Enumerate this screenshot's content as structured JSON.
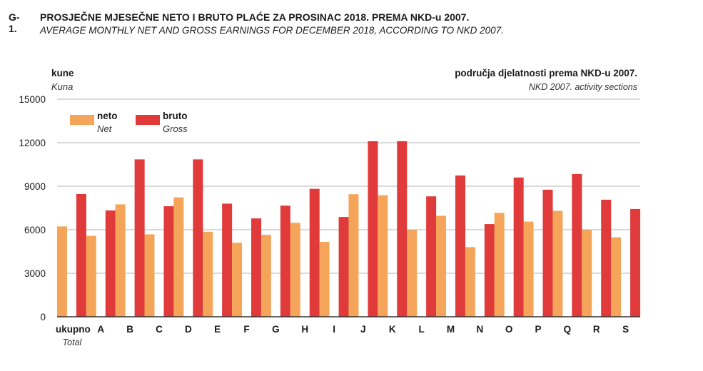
{
  "figure": {
    "code": "G-1.",
    "title": "PROSJEČNE MJESEČNE NETO I BRUTO PLAĆE ZA PROSINAC 2018. PREMA NKD-u 2007.",
    "subtitle": "AVERAGE MONTHLY NET AND GROSS EARNINGS FOR DECEMBER 2018, ACCORDING TO NKD 2007."
  },
  "colors": {
    "net": "#f5a55a",
    "gross": "#e03a3a",
    "grid": "#b5b5b5",
    "axis": "#333333"
  },
  "chart_data": {
    "type": "bar",
    "title": "PROSJEČNE MJESEČNE NETO I BRUTO PLAĆE ZA PROSINAC 2018. PREMA NKD-u 2007.",
    "ylabel": "kune",
    "ylabel_en": "Kuna",
    "xlabel": "područja djelatnosti prema NKD-u 2007.",
    "xlabel_en": "NKD 2007. activity sections",
    "ylim": [
      0,
      15000
    ],
    "yticks": [
      0,
      3000,
      6000,
      9000,
      12000,
      15000
    ],
    "grid": true,
    "legend_position": "top-left",
    "categories": [
      "ukupno",
      "A",
      "B",
      "C",
      "D",
      "E",
      "F",
      "G",
      "H",
      "I",
      "J",
      "K",
      "L",
      "M",
      "N",
      "O",
      "P",
      "Q",
      "R",
      "S"
    ],
    "first_category_en": "Total",
    "series": [
      {
        "name": "neto",
        "name_en": "Net",
        "values": [
          6230,
          5580,
          7750,
          5680,
          8230,
          5860,
          5100,
          5650,
          6480,
          5160,
          8450,
          8380,
          5990,
          6960,
          4800,
          7160,
          6560,
          7300,
          5980,
          5480
        ]
      },
      {
        "name": "bruto",
        "name_en": "Gross",
        "values": [
          8460,
          7330,
          10850,
          7620,
          10850,
          7800,
          6780,
          7660,
          8820,
          6880,
          12100,
          12100,
          8300,
          9740,
          6390,
          9600,
          8760,
          9840,
          8070,
          7430
        ]
      }
    ]
  }
}
